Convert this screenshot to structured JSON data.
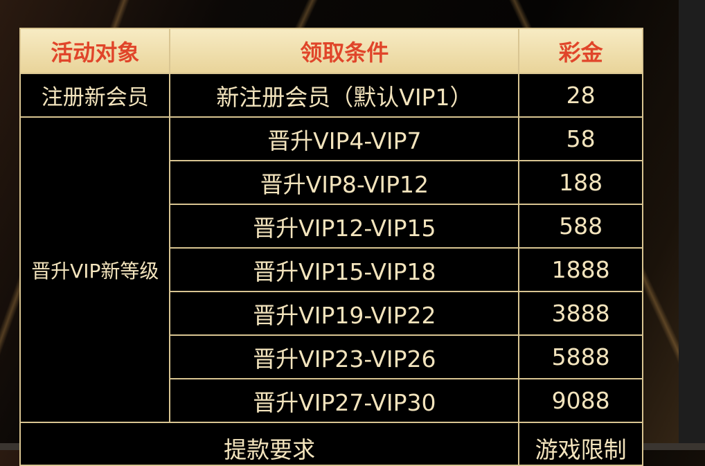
{
  "table": {
    "headers": [
      "活动对象",
      "领取条件",
      "彩金"
    ],
    "group1": {
      "target": "注册新会员",
      "condition": "新注册会员（默认VIP1）",
      "bonus": "28"
    },
    "group2": {
      "target": "晋升VIP新等级",
      "rows": [
        {
          "condition": "晋升VIP4-VIP7",
          "bonus": "58"
        },
        {
          "condition": "晋升VIP8-VIP12",
          "bonus": "188"
        },
        {
          "condition": "晋升VIP12-VIP15",
          "bonus": "588"
        },
        {
          "condition": "晋升VIP15-VIP18",
          "bonus": "1888"
        },
        {
          "condition": "晋升VIP19-VIP22",
          "bonus": "3888"
        },
        {
          "condition": "晋升VIP23-VIP26",
          "bonus": "5888"
        },
        {
          "condition": "晋升VIP27-VIP30",
          "bonus": "9088"
        }
      ]
    },
    "footer": {
      "withdraw": "提款要求",
      "game_limit": "游戏限制"
    }
  },
  "colors": {
    "header_bg": "#f0dfa8",
    "header_text": "#e0452a",
    "border": "#d9c592",
    "cell_text": "#f3e4bd"
  }
}
